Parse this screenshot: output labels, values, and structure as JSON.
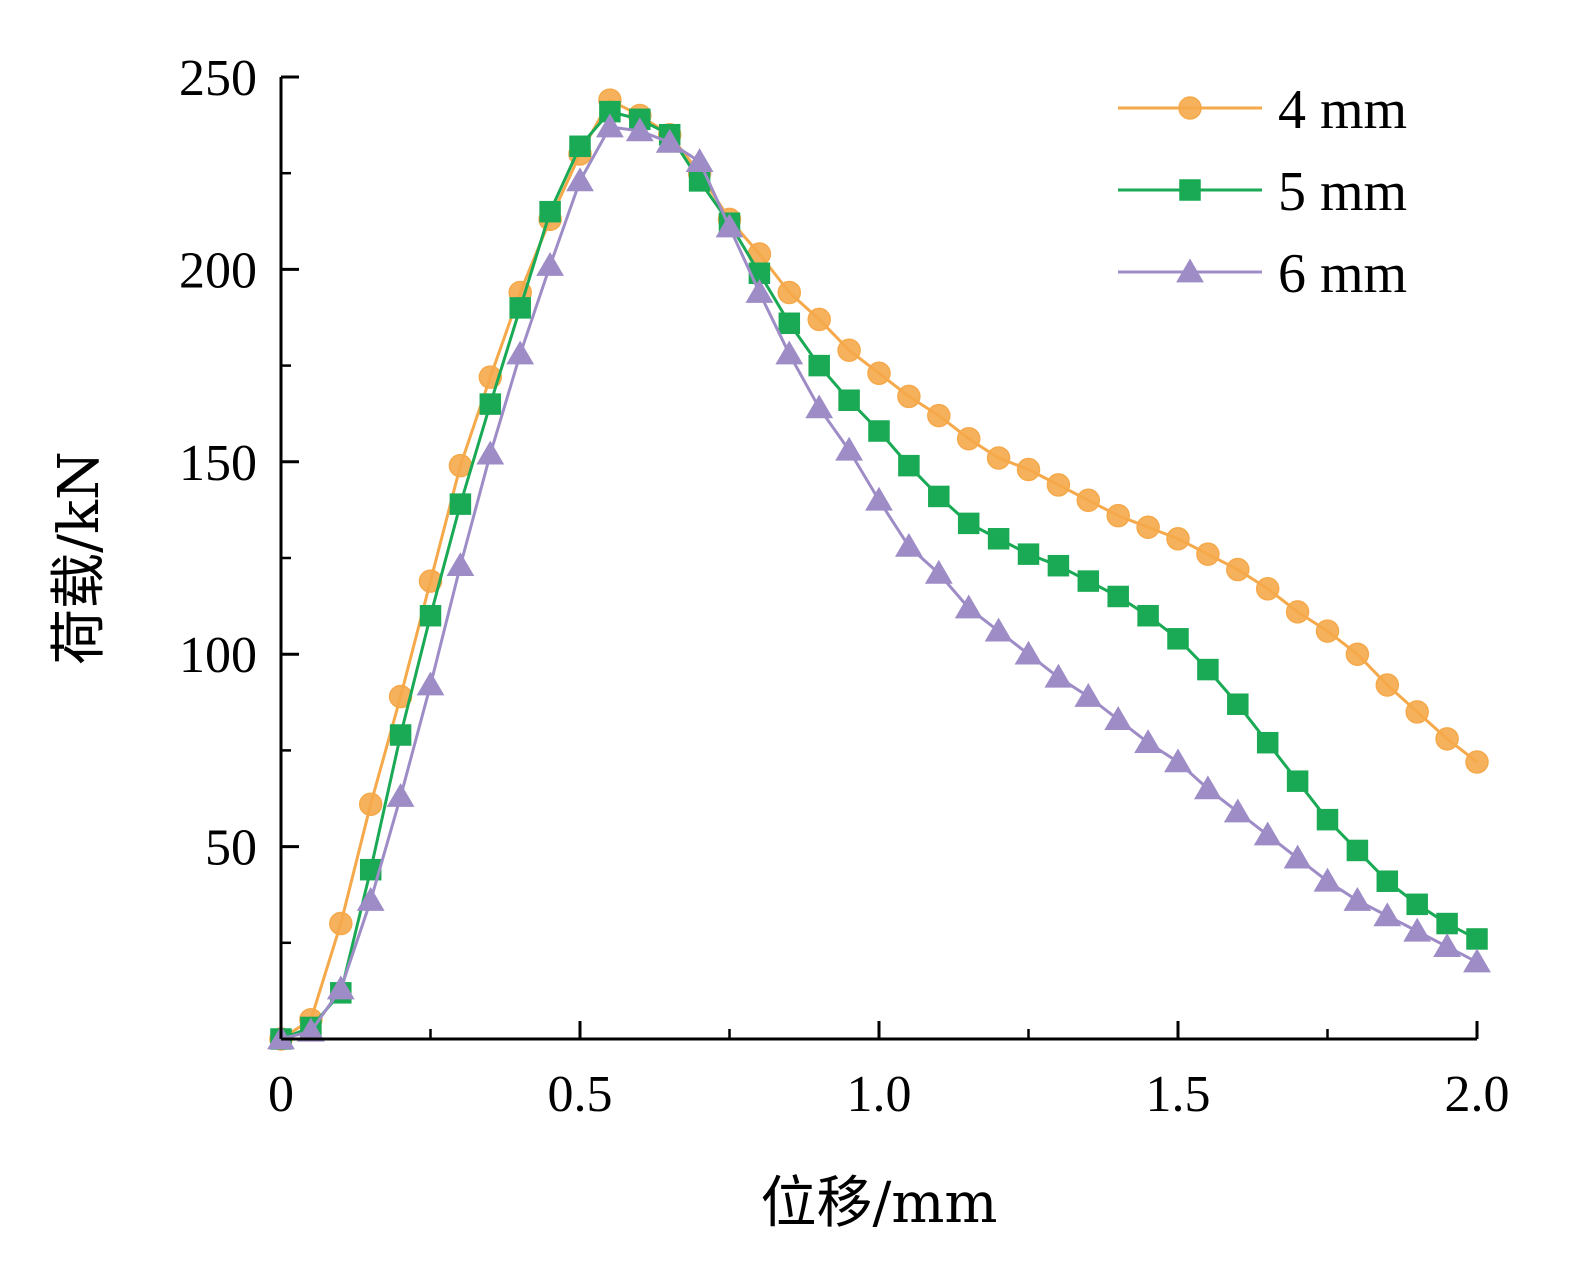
{
  "chart_data": {
    "type": "line",
    "title": "",
    "xlabel": "位移/mm",
    "ylabel": "荷载/kN",
    "xlim": [
      0,
      2.0
    ],
    "ylim": [
      0,
      250
    ],
    "xticks": [
      0,
      0.5,
      1.0,
      1.5,
      2.0
    ],
    "xtick_labels": [
      "0",
      "0.5",
      "1.0",
      "1.5",
      "2.0"
    ],
    "yticks": [
      50,
      100,
      150,
      200,
      250
    ],
    "ytick_labels": [
      "50",
      "100",
      "150",
      "200",
      "250"
    ],
    "grid": false,
    "legend_position": "top-right",
    "series": [
      {
        "name": "4 mm",
        "color": "#F5A94A",
        "marker": "circle",
        "x": [
          0,
          0.05,
          0.1,
          0.15,
          0.2,
          0.25,
          0.3,
          0.35,
          0.4,
          0.45,
          0.5,
          0.55,
          0.6,
          0.65,
          0.7,
          0.75,
          0.8,
          0.85,
          0.9,
          0.95,
          1.0,
          1.05,
          1.1,
          1.15,
          1.2,
          1.25,
          1.3,
          1.35,
          1.4,
          1.45,
          1.5,
          1.55,
          1.6,
          1.65,
          1.7,
          1.75,
          1.8,
          1.85,
          1.9,
          1.95,
          2.0
        ],
        "y": [
          0,
          5,
          30,
          61,
          89,
          119,
          149,
          172,
          194,
          213,
          230,
          244,
          240,
          235,
          225,
          213,
          204,
          194,
          187,
          179,
          173,
          167,
          162,
          156,
          151,
          148,
          144,
          140,
          136,
          133,
          130,
          126,
          122,
          117,
          111,
          106,
          100,
          92,
          85,
          78,
          72
        ]
      },
      {
        "name": "5 mm",
        "color": "#1AAA55",
        "marker": "square",
        "x": [
          0,
          0.05,
          0.1,
          0.15,
          0.2,
          0.25,
          0.3,
          0.35,
          0.4,
          0.45,
          0.5,
          0.55,
          0.6,
          0.65,
          0.7,
          0.75,
          0.8,
          0.85,
          0.9,
          0.95,
          1.0,
          1.05,
          1.1,
          1.15,
          1.2,
          1.25,
          1.3,
          1.35,
          1.4,
          1.45,
          1.5,
          1.55,
          1.6,
          1.65,
          1.7,
          1.75,
          1.8,
          1.85,
          1.9,
          1.95,
          2.0
        ],
        "y": [
          0,
          3,
          12,
          44,
          79,
          110,
          139,
          165,
          190,
          215,
          232,
          241,
          239,
          235,
          223,
          212,
          199,
          186,
          175,
          166,
          158,
          149,
          141,
          134,
          130,
          126,
          123,
          119,
          115,
          110,
          104,
          96,
          87,
          77,
          67,
          57,
          49,
          41,
          35,
          30,
          26
        ]
      },
      {
        "name": "6 mm",
        "color": "#9E8CC7",
        "marker": "triangle",
        "x": [
          0,
          0.05,
          0.1,
          0.15,
          0.2,
          0.25,
          0.3,
          0.35,
          0.4,
          0.45,
          0.5,
          0.55,
          0.6,
          0.65,
          0.7,
          0.75,
          0.8,
          0.85,
          0.9,
          0.95,
          1.0,
          1.05,
          1.1,
          1.15,
          1.2,
          1.25,
          1.3,
          1.35,
          1.4,
          1.45,
          1.5,
          1.55,
          1.6,
          1.65,
          1.7,
          1.75,
          1.8,
          1.85,
          1.9,
          1.95,
          2.0
        ],
        "y": [
          0,
          2,
          13,
          36,
          63,
          92,
          123,
          152,
          178,
          201,
          223,
          237,
          236,
          233,
          228,
          211,
          194,
          178,
          164,
          153,
          140,
          128,
          121,
          112,
          106,
          100,
          94,
          89,
          83,
          77,
          72,
          65,
          59,
          53,
          47,
          41,
          36,
          32,
          28,
          24,
          20
        ]
      }
    ]
  }
}
